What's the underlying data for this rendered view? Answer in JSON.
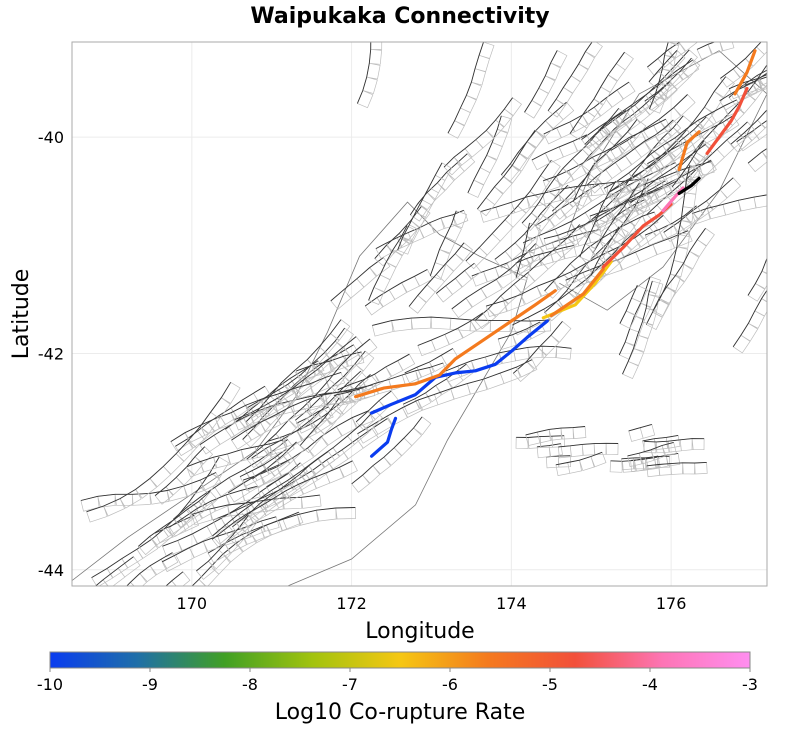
{
  "chart_data": {
    "type": "map",
    "title": "Waipukaka Connectivity",
    "xlabel": "Longitude",
    "ylabel": "Latitude",
    "xlim": [
      168.5,
      177.2
    ],
    "ylim": [
      -44.15,
      -39.12
    ],
    "xticks": [
      170,
      172,
      174,
      176
    ],
    "yticks": [
      -40,
      -42,
      -44
    ],
    "grid": true,
    "colorbar": {
      "label": "Log10 Co-rupture Rate",
      "min": -10,
      "max": -3,
      "ticks": [
        -10,
        -9,
        -8,
        -7,
        -6,
        -5,
        -4,
        -3
      ],
      "colors": [
        "#0a3cf0",
        "#1f6fa8",
        "#41a024",
        "#a2c30e",
        "#f5c713",
        "#f47a1e",
        "#f2503a",
        "#fd75b5",
        "#ff8ef0"
      ]
    },
    "highlighted_sections": [
      {
        "name": "blue-west",
        "log10_rate": -10,
        "color": "#0a3cf0",
        "coords": [
          [
            172.25,
            -42.55
          ],
          [
            172.5,
            -42.47
          ],
          [
            172.8,
            -42.38
          ],
          [
            173.05,
            -42.22
          ],
          [
            173.3,
            -42.18
          ],
          [
            173.55,
            -42.16
          ],
          [
            173.8,
            -42.1
          ],
          [
            174.0,
            -41.98
          ],
          [
            174.2,
            -41.85
          ],
          [
            174.45,
            -41.7
          ]
        ]
      },
      {
        "name": "blue-south",
        "log10_rate": -10,
        "color": "#0a3cf0",
        "coords": [
          [
            172.25,
            -42.95
          ],
          [
            172.45,
            -42.82
          ],
          [
            172.5,
            -42.7
          ],
          [
            172.55,
            -42.6
          ]
        ]
      },
      {
        "name": "orange-west",
        "log10_rate": -5,
        "color": "#f47a1e",
        "coords": [
          [
            172.05,
            -42.4
          ],
          [
            172.4,
            -42.32
          ],
          [
            172.8,
            -42.28
          ],
          [
            173.1,
            -42.2
          ],
          [
            173.3,
            -42.05
          ],
          [
            173.7,
            -41.85
          ],
          [
            174.0,
            -41.7
          ],
          [
            174.3,
            -41.55
          ],
          [
            174.55,
            -41.42
          ]
        ]
      },
      {
        "name": "yellow-central",
        "log10_rate": -6,
        "color": "#f5c713",
        "coords": [
          [
            174.4,
            -41.67
          ],
          [
            174.8,
            -41.55
          ],
          [
            175.05,
            -41.35
          ],
          [
            175.25,
            -41.15
          ]
        ]
      },
      {
        "name": "orange-central",
        "log10_rate": -5,
        "color": "#f47a1e",
        "coords": [
          [
            174.5,
            -41.65
          ],
          [
            174.9,
            -41.45
          ],
          [
            175.15,
            -41.22
          ]
        ]
      },
      {
        "name": "red-north",
        "log10_rate": -4.5,
        "color": "#f2503a",
        "coords": [
          [
            175.15,
            -41.2
          ],
          [
            175.4,
            -41.02
          ],
          [
            175.65,
            -40.82
          ],
          [
            175.85,
            -40.72
          ],
          [
            176.0,
            -40.62
          ]
        ]
      },
      {
        "name": "pink-north",
        "log10_rate": -3.5,
        "color": "#fd75b5",
        "coords": [
          [
            175.9,
            -40.68
          ],
          [
            176.05,
            -40.55
          ],
          [
            176.15,
            -40.47
          ]
        ]
      },
      {
        "name": "black-north",
        "log10_rate": -3,
        "color": "#000000",
        "coords": [
          [
            176.1,
            -40.52
          ],
          [
            176.25,
            -40.45
          ],
          [
            176.35,
            -40.38
          ]
        ]
      },
      {
        "name": "orange-northeast",
        "log10_rate": -5,
        "color": "#f47a1e",
        "coords": [
          [
            176.1,
            -40.3
          ],
          [
            176.2,
            -40.05
          ],
          [
            176.35,
            -39.95
          ]
        ]
      },
      {
        "name": "red-northeast",
        "log10_rate": -4.5,
        "color": "#f2503a",
        "coords": [
          [
            176.45,
            -40.15
          ],
          [
            176.6,
            -40.0
          ],
          [
            176.75,
            -39.85
          ],
          [
            176.85,
            -39.72
          ],
          [
            176.95,
            -39.55
          ]
        ]
      },
      {
        "name": "orange-far-northeast",
        "log10_rate": -5,
        "color": "#f47a1e",
        "coords": [
          [
            176.8,
            -39.6
          ],
          [
            176.95,
            -39.4
          ],
          [
            177.05,
            -39.2
          ]
        ]
      }
    ]
  }
}
